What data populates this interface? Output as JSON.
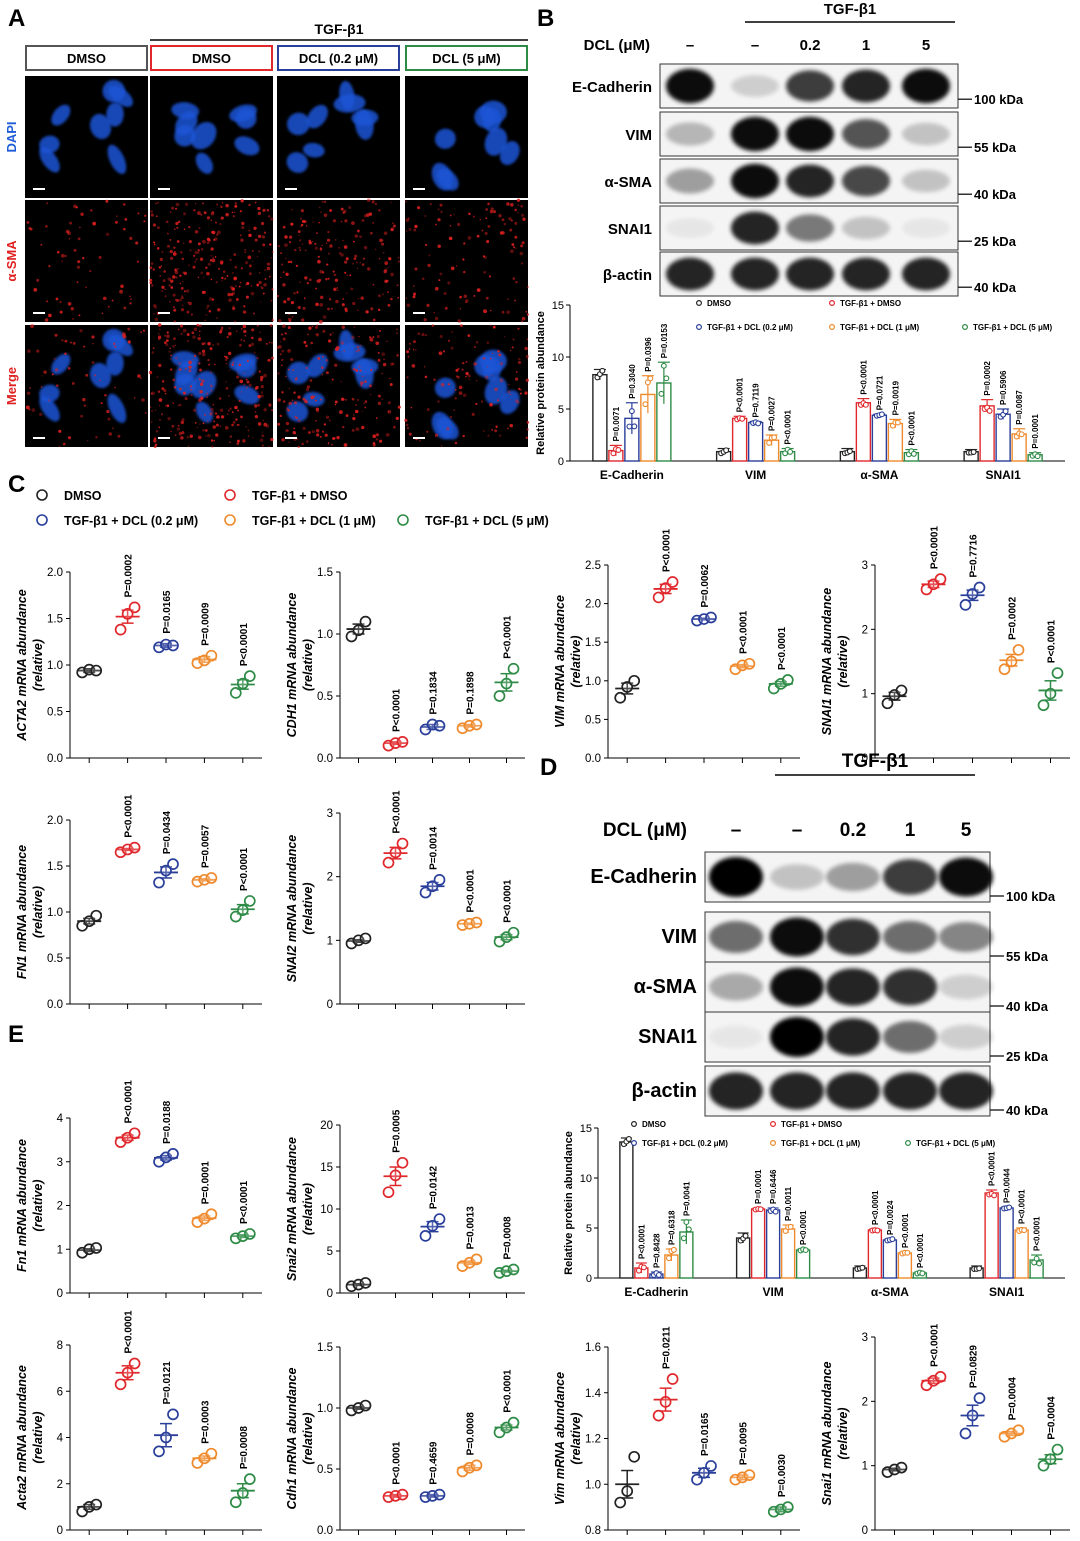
{
  "colors": {
    "DMSO": "#222222",
    "TGF": "#e0282c",
    "DCL02": "#2a3f9a",
    "DCL1": "#ef8a2c",
    "DCL5": "#2e8b46",
    "dapi": "#1d5bd8",
    "sma": "#e02020"
  },
  "panels": {
    "A": {
      "letter": "A",
      "tgf_label": "TGF-β1",
      "columns": [
        "DMSO",
        "DMSO",
        "DCL (0.2 μM)",
        "DCL (5 μM)"
      ],
      "rows": [
        "DAPI",
        "α-SMA",
        "Merge"
      ]
    },
    "B": {
      "letter": "B",
      "tgf_label": "TGF-β1",
      "dcl_label": "DCL (μM)",
      "lanes": [
        "–",
        "–",
        "0.2",
        "1",
        "5"
      ],
      "bands": [
        "E-Cadherin",
        "VIM",
        "α-SMA",
        "SNAI1",
        "β-actin"
      ],
      "kda": [
        "100 kDa",
        "55 kDa",
        "40 kDa",
        "25 kDa",
        "40 kDa"
      ],
      "band_intensity": [
        [
          0.95,
          0.15,
          0.75,
          0.85,
          0.95
        ],
        [
          0.25,
          0.95,
          0.95,
          0.65,
          0.2
        ],
        [
          0.35,
          0.95,
          0.85,
          0.7,
          0.2
        ],
        [
          0.05,
          0.85,
          0.5,
          0.2,
          0.05
        ],
        [
          0.85,
          0.85,
          0.85,
          0.85,
          0.85
        ]
      ]
    },
    "C": {
      "letter": "C"
    },
    "D": {
      "letter": "D",
      "tgf_label": "TGF-β1",
      "dcl_label": "DCL (μM)",
      "lanes": [
        "–",
        "–",
        "0.2",
        "1",
        "5"
      ],
      "bands": [
        "E-Cadherin",
        "VIM",
        "α-SMA",
        "SNAI1",
        "β-actin"
      ],
      "kda": [
        "100 kDa",
        "55 kDa",
        "40 kDa",
        "25 kDa",
        "40 kDa"
      ],
      "band_intensity": [
        [
          1.0,
          0.2,
          0.35,
          0.75,
          0.95
        ],
        [
          0.55,
          0.95,
          0.8,
          0.55,
          0.45
        ],
        [
          0.3,
          0.95,
          0.85,
          0.8,
          0.15
        ],
        [
          0.05,
          1.0,
          0.85,
          0.55,
          0.15
        ],
        [
          0.85,
          0.85,
          0.85,
          0.85,
          0.85
        ]
      ]
    },
    "E": {
      "letter": "E"
    }
  },
  "legend_groups": [
    "DMSO",
    "TGF-β1 + DMSO",
    "TGF-β1 + DCL (0.2 μM)",
    "TGF-β1 + DCL (1 μM)",
    "TGF-β1 + DCL (5 μM)"
  ],
  "chart_data": [
    {
      "id": "B_quant",
      "type": "bar",
      "ylabel": "Relative protein abundance",
      "ylim": [
        0,
        15
      ],
      "yticks": [
        0,
        5,
        10,
        15
      ],
      "categories": [
        "E-Cadherin",
        "VIM",
        "α-SMA",
        "SNAI1"
      ],
      "series": [
        {
          "name": "DMSO",
          "values": [
            8.3,
            0.9,
            0.9,
            0.9
          ],
          "sem": [
            0.5,
            0.3,
            0.3,
            0.2
          ]
        },
        {
          "name": "TGF-β1 + DMSO",
          "values": [
            1.0,
            4.1,
            5.6,
            5.3
          ],
          "sem": [
            0.5,
            0.2,
            0.4,
            0.6
          ]
        },
        {
          "name": "TGF-β1 + DCL (0.2 μM)",
          "values": [
            4.1,
            3.7,
            4.4,
            4.5
          ],
          "sem": [
            1.5,
            0.1,
            0.1,
            0.5
          ]
        },
        {
          "name": "TGF-β1 + DCL (1 μM)",
          "values": [
            6.4,
            2.0,
            3.6,
            2.6
          ],
          "sem": [
            1.8,
            0.5,
            0.4,
            0.5
          ]
        },
        {
          "name": "TGF-β1 + DCL (5 μM)",
          "values": [
            7.5,
            0.9,
            0.8,
            0.6
          ],
          "sem": [
            2.0,
            0.3,
            0.3,
            0.2
          ]
        }
      ],
      "pvalues": [
        [
          "P=0.0071",
          "P=0.3040",
          "P=0.0396",
          "P=0.0153"
        ],
        [
          "P<0.0001",
          "P=0.7119",
          "P=0.0027",
          "P<0.0001"
        ],
        [
          "P<0.0001",
          "P=0.0721",
          "P=0.0019",
          "P<0.0001"
        ],
        [
          "P=0.0002",
          "P=0.5906",
          "P=0.0087",
          "P=0.0001"
        ]
      ]
    },
    {
      "id": "C_ACTA2",
      "type": "scatter",
      "ylabel": "ACTA2 mRNA abundance",
      "ylabel2": "(relative)",
      "ylim": [
        0,
        2.0
      ],
      "yticks": [
        "0.0",
        "0.5",
        "1.0",
        "1.5",
        "2.0"
      ],
      "points": [
        [
          0.92,
          0.95,
          0.94
        ],
        [
          1.38,
          1.55,
          1.62
        ],
        [
          1.19,
          1.22,
          1.21
        ],
        [
          1.02,
          1.05,
          1.1
        ],
        [
          0.7,
          0.8,
          0.88
        ]
      ],
      "means": [
        0.94,
        1.52,
        1.21,
        1.06,
        0.79
      ],
      "sem": [
        0.02,
        0.07,
        0.02,
        0.03,
        0.05
      ],
      "pvalues": [
        "P=0.0002",
        "P=0.0165",
        "P=0.0009",
        "P<0.0001"
      ]
    },
    {
      "id": "C_CDH1",
      "type": "scatter",
      "ylabel": "CDH1 mRNA abundance",
      "ylabel2": "(relative)",
      "ylim": [
        0,
        1.5
      ],
      "yticks": [
        "0.0",
        "0.5",
        "1.0",
        "1.5"
      ],
      "points": [
        [
          0.98,
          1.03,
          1.1
        ],
        [
          0.1,
          0.12,
          0.13
        ],
        [
          0.23,
          0.27,
          0.26
        ],
        [
          0.24,
          0.26,
          0.27
        ],
        [
          0.5,
          0.6,
          0.72
        ]
      ],
      "means": [
        1.04,
        0.12,
        0.25,
        0.26,
        0.61
      ],
      "sem": [
        0.04,
        0.01,
        0.02,
        0.01,
        0.07
      ],
      "pvalues": [
        "P<0.0001",
        "P=0.1834",
        "P=0.1898",
        "P<0.0001"
      ]
    },
    {
      "id": "C_VIM",
      "type": "scatter",
      "ylabel": "VIM mRNA abundance",
      "ylabel2": "(relative)",
      "ylim": [
        0,
        2.5
      ],
      "yticks": [
        "0.0",
        "0.5",
        "1.0",
        "1.5",
        "2.0",
        "2.5"
      ],
      "points": [
        [
          0.78,
          0.92,
          1.0
        ],
        [
          2.08,
          2.2,
          2.28
        ],
        [
          1.78,
          1.8,
          1.82
        ],
        [
          1.15,
          1.2,
          1.22
        ],
        [
          0.9,
          0.96,
          1.01
        ]
      ],
      "means": [
        0.9,
        2.19,
        1.8,
        1.19,
        0.96
      ],
      "sem": [
        0.07,
        0.06,
        0.01,
        0.02,
        0.03
      ],
      "pvalues": [
        "P<0.0001",
        "P=0.0062",
        "P<0.0001",
        "P<0.0001"
      ]
    },
    {
      "id": "C_SNAI1",
      "type": "scatter",
      "ylabel": "SNAI1 mRNA abundance",
      "ylabel2": "(relative)",
      "ylim": [
        0,
        3
      ],
      "yticks": [
        "0",
        "1",
        "2",
        "3"
      ],
      "points": [
        [
          0.85,
          0.98,
          1.05
        ],
        [
          2.62,
          2.7,
          2.78
        ],
        [
          2.38,
          2.55,
          2.65
        ],
        [
          1.38,
          1.5,
          1.68
        ],
        [
          0.82,
          1.0,
          1.32
        ]
      ],
      "means": [
        0.96,
        2.7,
        2.53,
        1.52,
        1.05
      ],
      "sem": [
        0.06,
        0.05,
        0.08,
        0.09,
        0.15
      ],
      "pvalues": [
        "P<0.0001",
        "P=0.7716",
        "P=0.0002",
        "P<0.0001"
      ]
    },
    {
      "id": "C_FN1",
      "type": "scatter",
      "ylabel": "FN1 mRNA abundance",
      "ylabel2": "(relative)",
      "ylim": [
        0,
        2.0
      ],
      "yticks": [
        "0.0",
        "0.5",
        "1.0",
        "1.5",
        "2.0"
      ],
      "points": [
        [
          0.85,
          0.9,
          0.96
        ],
        [
          1.65,
          1.68,
          1.7
        ],
        [
          1.32,
          1.45,
          1.52
        ],
        [
          1.33,
          1.35,
          1.37
        ],
        [
          0.95,
          1.02,
          1.12
        ]
      ],
      "means": [
        0.9,
        1.68,
        1.43,
        1.35,
        1.03
      ],
      "sem": [
        0.03,
        0.01,
        0.06,
        0.01,
        0.05
      ],
      "pvalues": [
        "P<0.0001",
        "P=0.0434",
        "P=0.0057",
        "P<0.0001"
      ]
    },
    {
      "id": "C_SNAI2",
      "type": "scatter",
      "ylabel": "SNAI2 mRNA abundance",
      "ylabel2": "(relative)",
      "ylim": [
        0,
        3
      ],
      "yticks": [
        "0",
        "1",
        "2",
        "3"
      ],
      "points": [
        [
          0.95,
          1.0,
          1.03
        ],
        [
          2.22,
          2.38,
          2.52
        ],
        [
          1.75,
          1.85,
          1.95
        ],
        [
          1.24,
          1.26,
          1.28
        ],
        [
          0.98,
          1.05,
          1.12
        ]
      ],
      "means": [
        0.99,
        2.37,
        1.85,
        1.26,
        1.05
      ],
      "sem": [
        0.02,
        0.09,
        0.06,
        0.01,
        0.04
      ],
      "pvalues": [
        "P<0.0001",
        "P=0.0014",
        "P<0.0001",
        "P<0.0001"
      ]
    },
    {
      "id": "D_quant",
      "type": "bar",
      "ylabel": "Relative protein abundance",
      "ylim": [
        0,
        15
      ],
      "yticks": [
        0,
        5,
        10,
        15
      ],
      "categories": [
        "E-Cadherin",
        "VIM",
        "α-SMA",
        "SNAI1"
      ],
      "series": [
        {
          "name": "DMSO",
          "values": [
            13.6,
            4.0,
            1.0,
            1.0
          ],
          "sem": [
            0.4,
            0.5,
            0.2,
            0.2
          ]
        },
        {
          "name": "TGF-β1 + DMSO",
          "values": [
            1.0,
            6.9,
            4.8,
            8.5
          ],
          "sem": [
            0.5,
            0.1,
            0.1,
            0.3
          ]
        },
        {
          "name": "TGF-β1 + DCL (0.2 μM)",
          "values": [
            0.4,
            6.8,
            3.8,
            7.0
          ],
          "sem": [
            0.2,
            0.2,
            0.1,
            0.1
          ]
        },
        {
          "name": "TGF-β1 + DCL (1 μM)",
          "values": [
            2.3,
            4.9,
            2.5,
            4.8
          ],
          "sem": [
            0.6,
            0.4,
            0.1,
            0.2
          ]
        },
        {
          "name": "TGF-β1 + DCL (5 μM)",
          "values": [
            4.6,
            2.8,
            0.5,
            1.8
          ],
          "sem": [
            1.2,
            0.1,
            0.1,
            0.5
          ]
        }
      ],
      "pvalues": [
        [
          "P<0.0001",
          "P=0.8428",
          "P=0.6318",
          "P=0.0041"
        ],
        [
          "P=0.0001",
          "P=0.6446",
          "P=0.0011",
          "P<0.0001"
        ],
        [
          "P<0.0001",
          "P=0.0024",
          "P<0.0001",
          "P<0.0001"
        ],
        [
          "P<0.0001",
          "P=0.0044",
          "P<0.0001",
          "P<0.0001"
        ]
      ]
    },
    {
      "id": "E_Fn1",
      "type": "scatter",
      "ylabel": "Fn1 mRNA abundance",
      "ylabel2": "(relative)",
      "ylim": [
        0,
        4
      ],
      "yticks": [
        "0",
        "1",
        "2",
        "3",
        "4"
      ],
      "points": [
        [
          0.92,
          1.0,
          1.03
        ],
        [
          3.45,
          3.55,
          3.65
        ],
        [
          3.0,
          3.1,
          3.18
        ],
        [
          1.62,
          1.7,
          1.8
        ],
        [
          1.25,
          1.3,
          1.35
        ]
      ],
      "means": [
        0.98,
        3.55,
        3.09,
        1.71,
        1.3
      ],
      "sem": [
        0.03,
        0.06,
        0.05,
        0.05,
        0.03
      ],
      "pvalues": [
        "P<0.0001",
        "P=0.0188",
        "P=0.0001",
        "P<0.0001"
      ]
    },
    {
      "id": "E_Snai2",
      "type": "scatter",
      "ylabel": "Snai2 mRNA abundance",
      "ylabel2": "(relative)",
      "ylim": [
        0,
        20
      ],
      "yticks": [
        "0",
        "5",
        "10",
        "15",
        "20"
      ],
      "points": [
        [
          0.8,
          1.0,
          1.2
        ],
        [
          12.0,
          14.0,
          15.5
        ],
        [
          6.8,
          8.0,
          8.8
        ],
        [
          3.2,
          3.6,
          4.0
        ],
        [
          2.4,
          2.6,
          2.8
        ]
      ],
      "means": [
        1.0,
        13.9,
        7.9,
        3.6,
        2.6
      ],
      "sem": [
        0.1,
        1.1,
        0.6,
        0.2,
        0.1
      ],
      "pvalues": [
        "P=0.0005",
        "P=0.0142",
        "P=0.0013",
        "P=0.0008"
      ]
    },
    {
      "id": "E_Acta2",
      "type": "scatter",
      "ylabel": "Acta2 mRNA abundance",
      "ylabel2": "(relative)",
      "ylim": [
        0,
        8
      ],
      "yticks": [
        "0",
        "2",
        "4",
        "6",
        "8"
      ],
      "points": [
        [
          0.8,
          1.0,
          1.1
        ],
        [
          6.3,
          6.8,
          7.2
        ],
        [
          3.4,
          4.0,
          5.0
        ],
        [
          2.9,
          3.1,
          3.3
        ],
        [
          1.2,
          1.6,
          2.2
        ]
      ],
      "means": [
        1.0,
        6.8,
        4.1,
        3.1,
        1.7
      ],
      "sem": [
        0.1,
        0.3,
        0.5,
        0.1,
        0.3
      ],
      "pvalues": [
        "P<0.0001",
        "P=0.0121",
        "P=0.0003",
        "P=0.0008"
      ]
    },
    {
      "id": "E_Cdh1",
      "type": "scatter",
      "ylabel": "Cdh1 mRNA abundance",
      "ylabel2": "(relative)",
      "ylim": [
        0,
        1.5
      ],
      "yticks": [
        "0.0",
        "0.5",
        "1.0",
        "1.5"
      ],
      "points": [
        [
          0.98,
          1.0,
          1.02
        ],
        [
          0.27,
          0.28,
          0.29
        ],
        [
          0.27,
          0.28,
          0.29
        ],
        [
          0.48,
          0.51,
          0.53
        ],
        [
          0.8,
          0.84,
          0.88
        ]
      ],
      "means": [
        1.0,
        0.28,
        0.28,
        0.51,
        0.84
      ],
      "sem": [
        0.01,
        0.01,
        0.01,
        0.02,
        0.02
      ],
      "pvalues": [
        "P<0.0001",
        "P=0.4659",
        "P=0.0008",
        "P<0.0001"
      ]
    },
    {
      "id": "E_Vim",
      "type": "scatter",
      "ylabel": "Vim mRNA abundance",
      "ylabel2": "(relative)",
      "ylim": [
        0.8,
        1.6
      ],
      "yticks": [
        "0.8",
        "1.0",
        "1.2",
        "1.4",
        "1.6"
      ],
      "points": [
        [
          0.92,
          0.97,
          1.12
        ],
        [
          1.3,
          1.36,
          1.46
        ],
        [
          1.02,
          1.05,
          1.08
        ],
        [
          1.02,
          1.03,
          1.04
        ],
        [
          0.88,
          0.89,
          0.9
        ]
      ],
      "means": [
        1.0,
        1.37,
        1.05,
        1.03,
        0.89
      ],
      "sem": [
        0.06,
        0.05,
        0.02,
        0.01,
        0.01
      ],
      "pvalues": [
        "P=0.0211",
        "P=0.0165",
        "P=0.0095",
        "P=0.0030"
      ]
    },
    {
      "id": "E_Snai1",
      "type": "scatter",
      "ylabel": "Snai1 mRNA abundance",
      "ylabel2": "(relative)",
      "ylim": [
        0,
        3
      ],
      "yticks": [
        "0",
        "1",
        "2",
        "3"
      ],
      "points": [
        [
          0.9,
          0.94,
          0.97
        ],
        [
          2.25,
          2.32,
          2.38
        ],
        [
          1.5,
          1.78,
          2.05
        ],
        [
          1.45,
          1.5,
          1.55
        ],
        [
          1.0,
          1.1,
          1.25
        ]
      ],
      "means": [
        0.94,
        2.32,
        1.78,
        1.5,
        1.1
      ],
      "sem": [
        0.02,
        0.04,
        0.16,
        0.03,
        0.07
      ],
      "pvalues": [
        "P<0.0001",
        "P=0.0829",
        "P=0.0004",
        "P=0.0004"
      ]
    }
  ]
}
